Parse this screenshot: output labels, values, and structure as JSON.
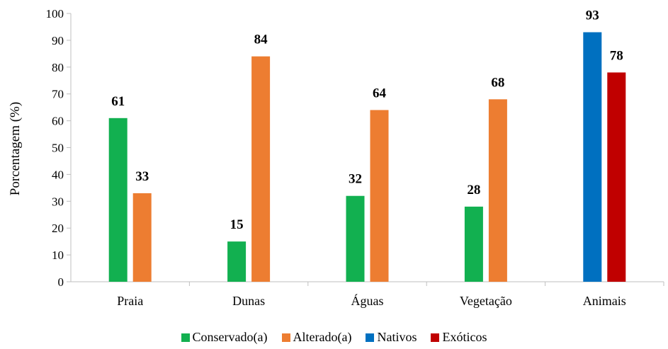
{
  "chart_data": {
    "type": "bar",
    "categories": [
      "Praia",
      "Dunas",
      "Águas",
      "Vegetação",
      "Animais"
    ],
    "series": [
      {
        "name": "Conservado(a)",
        "color": "#12b050",
        "values": [
          61,
          15,
          32,
          28,
          null
        ]
      },
      {
        "name": "Alterado(a)",
        "color": "#ed7d31",
        "values": [
          33,
          84,
          64,
          68,
          null
        ]
      },
      {
        "name": "Nativos",
        "color": "#0070c0",
        "values": [
          null,
          null,
          null,
          null,
          93
        ]
      },
      {
        "name": "Exóticos",
        "color": "#c00000",
        "values": [
          null,
          null,
          null,
          null,
          78
        ]
      }
    ],
    "ylabel": "Porcentagem (%)",
    "ylim": [
      0,
      100
    ],
    "yticks": [
      0,
      10,
      20,
      30,
      40,
      50,
      60,
      70,
      80,
      90,
      100
    ],
    "grid": false,
    "legend": "bottom"
  }
}
